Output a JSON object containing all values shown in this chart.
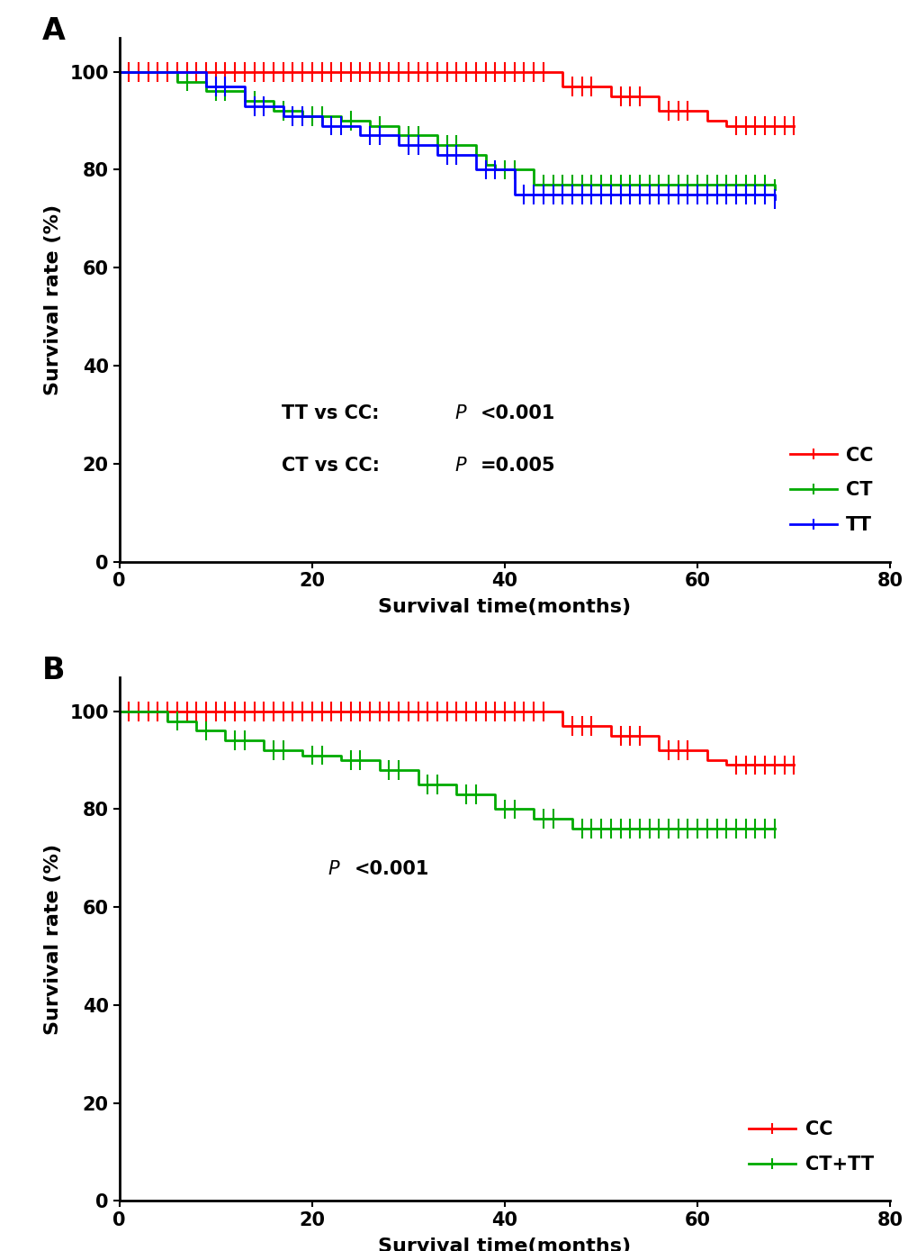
{
  "panel_A": {
    "CC": {
      "times": [
        0,
        45,
        46,
        50,
        51,
        55,
        56,
        60,
        61,
        62,
        63,
        70
      ],
      "survival": [
        100,
        100,
        97,
        97,
        95,
        95,
        92,
        92,
        90,
        90,
        89,
        89
      ],
      "censor_times": [
        1,
        2,
        3,
        4,
        5,
        6,
        7,
        8,
        9,
        10,
        11,
        12,
        13,
        14,
        15,
        16,
        17,
        18,
        19,
        20,
        21,
        22,
        23,
        24,
        25,
        26,
        27,
        28,
        29,
        30,
        31,
        32,
        33,
        34,
        35,
        36,
        37,
        38,
        39,
        40,
        41,
        42,
        43,
        44,
        47,
        48,
        49,
        52,
        53,
        54,
        57,
        58,
        59,
        64,
        65,
        66,
        67,
        68,
        69,
        70
      ],
      "color": "#FF0000"
    },
    "CT": {
      "times": [
        0,
        5,
        6,
        8,
        9,
        12,
        13,
        15,
        16,
        18,
        19,
        22,
        23,
        25,
        26,
        28,
        29,
        32,
        33,
        36,
        37,
        38,
        39,
        42,
        43,
        68
      ],
      "survival": [
        100,
        100,
        98,
        98,
        96,
        96,
        94,
        94,
        92,
        92,
        91,
        91,
        90,
        90,
        89,
        89,
        87,
        87,
        85,
        85,
        83,
        81,
        80,
        80,
        77,
        76
      ],
      "censor_times": [
        7,
        10,
        11,
        14,
        17,
        20,
        21,
        24,
        27,
        30,
        31,
        34,
        35,
        40,
        41,
        44,
        45,
        46,
        47,
        48,
        49,
        50,
        51,
        52,
        53,
        54,
        55,
        56,
        57,
        58,
        59,
        60,
        61,
        62,
        63,
        64,
        65,
        66,
        67,
        68
      ],
      "color": "#00AA00"
    },
    "TT": {
      "times": [
        0,
        8,
        9,
        12,
        13,
        16,
        17,
        20,
        21,
        24,
        25,
        28,
        29,
        32,
        33,
        36,
        37,
        40,
        41,
        68
      ],
      "survival": [
        100,
        100,
        97,
        97,
        93,
        93,
        91,
        91,
        89,
        89,
        87,
        87,
        85,
        85,
        83,
        83,
        80,
        80,
        75,
        74
      ],
      "censor_times": [
        10,
        11,
        14,
        15,
        18,
        19,
        22,
        23,
        26,
        27,
        30,
        31,
        34,
        35,
        38,
        39,
        42,
        43,
        44,
        45,
        46,
        47,
        48,
        49,
        50,
        51,
        52,
        53,
        54,
        55,
        56,
        57,
        58,
        59,
        60,
        61,
        62,
        63,
        64,
        65,
        66,
        67,
        68
      ],
      "color": "#0000FF"
    }
  },
  "panel_B": {
    "CC": {
      "times": [
        0,
        45,
        46,
        50,
        51,
        55,
        56,
        60,
        61,
        62,
        63,
        70
      ],
      "survival": [
        100,
        100,
        97,
        97,
        95,
        95,
        92,
        92,
        90,
        90,
        89,
        89
      ],
      "censor_times": [
        1,
        2,
        3,
        4,
        5,
        6,
        7,
        8,
        9,
        10,
        11,
        12,
        13,
        14,
        15,
        16,
        17,
        18,
        19,
        20,
        21,
        22,
        23,
        24,
        25,
        26,
        27,
        28,
        29,
        30,
        31,
        32,
        33,
        34,
        35,
        36,
        37,
        38,
        39,
        40,
        41,
        42,
        43,
        44,
        47,
        48,
        49,
        52,
        53,
        54,
        57,
        58,
        59,
        64,
        65,
        66,
        67,
        68,
        69,
        70
      ],
      "color": "#FF0000"
    },
    "CT_TT": {
      "times": [
        0,
        4,
        5,
        7,
        8,
        10,
        11,
        14,
        15,
        18,
        19,
        22,
        23,
        26,
        27,
        30,
        31,
        34,
        35,
        38,
        39,
        42,
        43,
        46,
        47,
        68
      ],
      "survival": [
        100,
        100,
        98,
        98,
        96,
        96,
        94,
        94,
        92,
        92,
        91,
        91,
        90,
        90,
        88,
        88,
        85,
        85,
        83,
        83,
        80,
        80,
        78,
        78,
        76,
        76
      ],
      "censor_times": [
        6,
        9,
        12,
        13,
        16,
        17,
        20,
        21,
        24,
        25,
        28,
        29,
        32,
        33,
        36,
        37,
        40,
        41,
        44,
        45,
        48,
        49,
        50,
        51,
        52,
        53,
        54,
        55,
        56,
        57,
        58,
        59,
        60,
        61,
        62,
        63,
        64,
        65,
        66,
        67,
        68
      ],
      "color": "#00AA00"
    }
  },
  "xlim": [
    0,
    80
  ],
  "ylim": [
    0,
    107
  ],
  "yticks": [
    0,
    20,
    40,
    60,
    80,
    100
  ],
  "xticks": [
    0,
    20,
    40,
    60,
    80
  ],
  "xlabel": "Survival time(months)",
  "ylabel": "Survival rate (%)",
  "label_A": "A",
  "label_B": "B",
  "line_width": 2.0,
  "censor_tick_height": 2.0,
  "censor_lw": 1.5
}
